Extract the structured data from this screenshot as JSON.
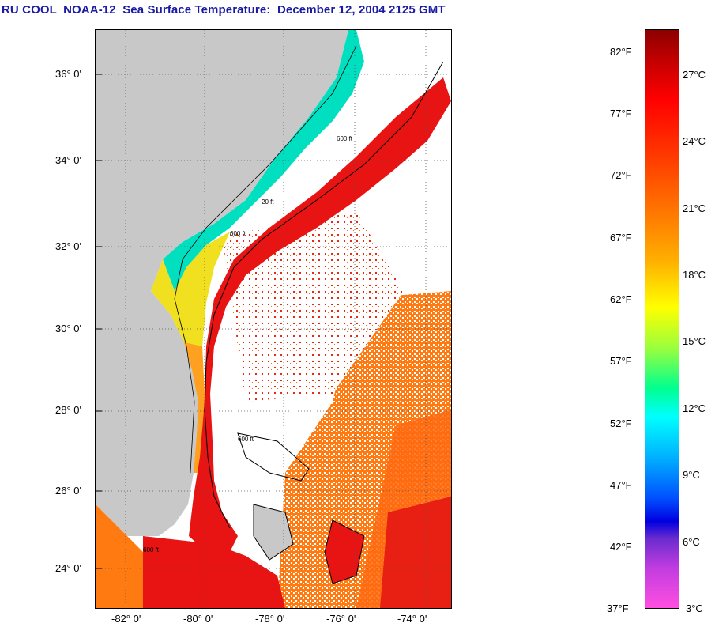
{
  "title": "RU COOL  NOAA-12  Sea Surface Temperature:  December 12, 2004 2125 GMT",
  "map": {
    "lat_labels": [
      "36° 0'",
      "34° 0'",
      "32° 0'",
      "30° 0'",
      "28° 0'",
      "26° 0'",
      "24° 0'"
    ],
    "lon_labels": [
      "-82° 0'",
      "-80° 0'",
      "-78° 0'",
      "-76° 0'",
      "-74° 0'"
    ],
    "contour_labels": [
      "600 ft",
      "600 ft",
      "600 ft",
      "20 ft",
      "600 ft"
    ],
    "colors": {
      "land": "#c8c8c8",
      "cloud": "#ffffff",
      "gulf_stream": "#e81414",
      "warm_water": "#ff7a10",
      "shelf_water": "#f0e020",
      "cool_water": "#00e0c0"
    }
  },
  "colorbar": {
    "fahrenheit": [
      "82°F",
      "77°F",
      "72°F",
      "67°F",
      "62°F",
      "57°F",
      "52°F",
      "47°F",
      "42°F",
      "37°F"
    ],
    "celsius": [
      "27°C",
      "24°C",
      "21°C",
      "18°C",
      "15°C",
      "12°C",
      "9°C",
      "6°C",
      "3°C"
    ]
  }
}
